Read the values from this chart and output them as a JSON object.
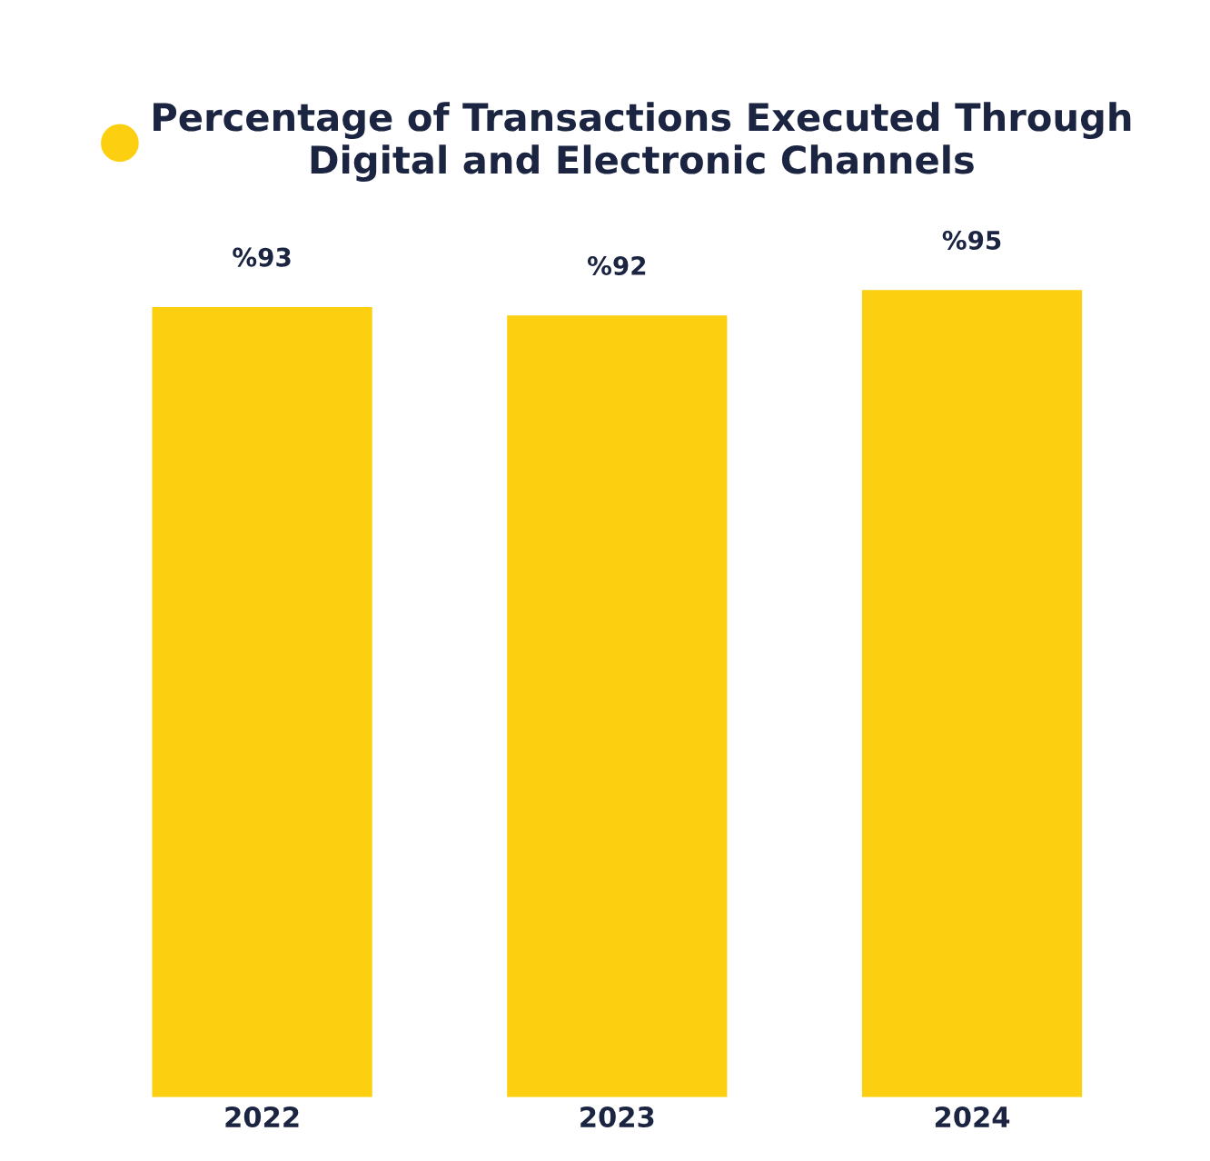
{
  "chart_data": {
    "type": "bar",
    "categories": [
      "2022",
      "2023",
      "2024"
    ],
    "series": [
      {
        "name": "Percentage of Transactions Executed Through\nDigital and Electronic Channels",
        "color": "#fcd011",
        "values": [
          93,
          92,
          95
        ],
        "value_labels": [
          "%93",
          "%92",
          "%95"
        ]
      }
    ],
    "legend": "top",
    "marker": "circle",
    "tick_labels": "x",
    "grid": false
  }
}
